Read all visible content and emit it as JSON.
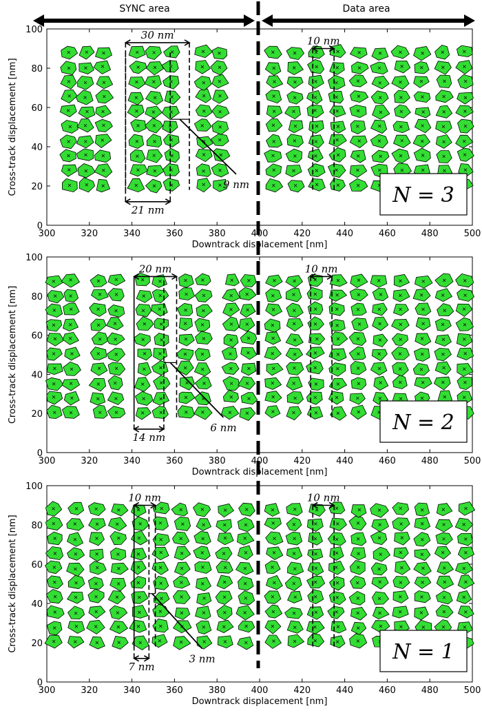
{
  "header": {
    "left_region": "SYNC area",
    "right_region": "Data area"
  },
  "chart_data": [
    {
      "type": "scatter",
      "panel_label": "N = 3",
      "xlabel": "Downtrack displacement [nm]",
      "ylabel": "Cross-track displacement [nm]",
      "xlim": [
        300,
        500
      ],
      "ylim": [
        0,
        100
      ],
      "xticks": [
        300,
        320,
        340,
        360,
        380,
        400,
        420,
        440,
        460,
        480,
        500
      ],
      "yticks": [
        0,
        20,
        40,
        60,
        80,
        100
      ],
      "grain_color": "#33dd33",
      "sync_columns": [
        310.5,
        318.5,
        326.5,
        342.5,
        350.5,
        358.5,
        373.5,
        381.5
      ],
      "sync_columns_x": [
        310.5,
        318.5,
        326.5,
        342.5,
        350.5,
        358.5,
        373.5,
        381.5
      ],
      "data_columns_x": [
        406.5,
        416.5,
        426.5,
        436.5,
        446.5,
        456.5,
        466.5,
        476.5,
        486.5,
        496.5
      ],
      "rows_y": [
        20.5,
        28.0,
        35.5,
        43.0,
        50.5,
        58.0,
        65.5,
        73.0,
        80.5,
        88.0
      ],
      "annotations": [
        {
          "text": "30 nm",
          "from": 337,
          "to": 367,
          "y": 93,
          "type": "top"
        },
        {
          "text": "21 nm",
          "from": 337,
          "to": 358,
          "y": 12,
          "type": "bottom"
        },
        {
          "text": "9 nm",
          "from": 358,
          "to": 367,
          "y": 54,
          "type": "gap"
        },
        {
          "text": "10 nm",
          "from": 425,
          "to": 435,
          "y": 90,
          "type": "top"
        }
      ]
    },
    {
      "type": "scatter",
      "panel_label": "N = 2",
      "xlabel": "Downtrack displacement [nm]",
      "ylabel": "Cross-track displacement [nm]",
      "xlim": [
        300,
        500
      ],
      "ylim": [
        0,
        100
      ],
      "xticks": [
        300,
        320,
        340,
        360,
        380,
        400,
        420,
        440,
        460,
        480,
        500
      ],
      "yticks": [
        0,
        20,
        40,
        60,
        80,
        100
      ],
      "grain_color": "#33dd33",
      "sync_columns_x": [
        303.5,
        311.5,
        324.5,
        332.5,
        345.5,
        353.5,
        365.5,
        373.5,
        386.5,
        394.5
      ],
      "data_columns_x": [
        406.5,
        416.5,
        426.5,
        436.5,
        446.5,
        456.5,
        466.5,
        476.5,
        486.5,
        496.5
      ],
      "rows_y": [
        20.5,
        28.0,
        35.5,
        43.0,
        50.5,
        58.0,
        65.5,
        73.0,
        80.5,
        88.0
      ],
      "annotations": [
        {
          "text": "20 nm",
          "from": 341,
          "to": 361,
          "y": 90,
          "type": "top"
        },
        {
          "text": "14 nm",
          "from": 341,
          "to": 355,
          "y": 12,
          "type": "bottom"
        },
        {
          "text": "6 nm",
          "from": 355,
          "to": 361,
          "y": 46,
          "type": "gap"
        },
        {
          "text": "10 nm",
          "from": 424,
          "to": 434,
          "y": 90,
          "type": "top"
        }
      ]
    },
    {
      "type": "scatter",
      "panel_label": "N = 1",
      "xlabel": "Downtrack displacement [nm]",
      "ylabel": "Cross-track displacement [nm]",
      "xlim": [
        300,
        500
      ],
      "ylim": [
        0,
        100
      ],
      "xticks": [
        300,
        320,
        340,
        360,
        380,
        400,
        420,
        440,
        460,
        480,
        500
      ],
      "yticks": [
        0,
        20,
        40,
        60,
        80,
        100
      ],
      "grain_color": "#33dd33",
      "sync_columns_x": [
        303.5,
        313.5,
        323.5,
        333.5,
        343.5,
        353.5,
        363.5,
        373.5,
        383.5,
        393.5
      ],
      "data_columns_x": [
        406.5,
        416.5,
        426.5,
        436.5,
        446.5,
        456.5,
        466.5,
        476.5,
        486.5,
        496.5
      ],
      "rows_y": [
        20.5,
        28.0,
        35.5,
        43.0,
        50.5,
        58.0,
        65.5,
        73.0,
        80.5,
        88.0
      ],
      "annotations": [
        {
          "text": "10 nm",
          "from": 341,
          "to": 351,
          "y": 90,
          "type": "top"
        },
        {
          "text": "7 nm",
          "from": 341,
          "to": 348,
          "y": 12,
          "type": "bottom"
        },
        {
          "text": "3 nm",
          "from": 348,
          "to": 351,
          "y": 45,
          "type": "gap"
        },
        {
          "text": "10 nm",
          "from": 425,
          "to": 435,
          "y": 90,
          "type": "top"
        }
      ]
    }
  ]
}
